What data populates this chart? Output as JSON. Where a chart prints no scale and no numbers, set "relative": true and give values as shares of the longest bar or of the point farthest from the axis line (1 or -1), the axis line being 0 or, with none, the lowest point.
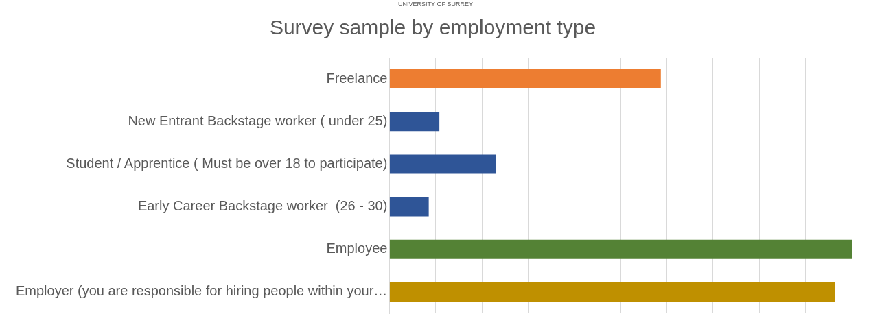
{
  "chart_data": {
    "type": "bar",
    "orientation": "horizontal",
    "relative": true,
    "title": "Survey sample by employment type",
    "annotations": [
      "UNIVERSITY OF SURREY"
    ],
    "categories": [
      "Freelance",
      "New Entrant Backstage worker ( under 25)",
      "Student / Apprentice ( Must be over 18 to participate)",
      "Early Career Backstage worker  (26 - 30)",
      "Employee",
      "Employer (you are responsible for hiring people within your…"
    ],
    "values": [
      0.587,
      0.108,
      0.231,
      0.085,
      1,
      0.964
    ],
    "colors": [
      "#ed7d31",
      "#2f5597",
      "#2f5597",
      "#2f5597",
      "#548235",
      "#bf9000"
    ],
    "grid": "x",
    "legend": false
  }
}
